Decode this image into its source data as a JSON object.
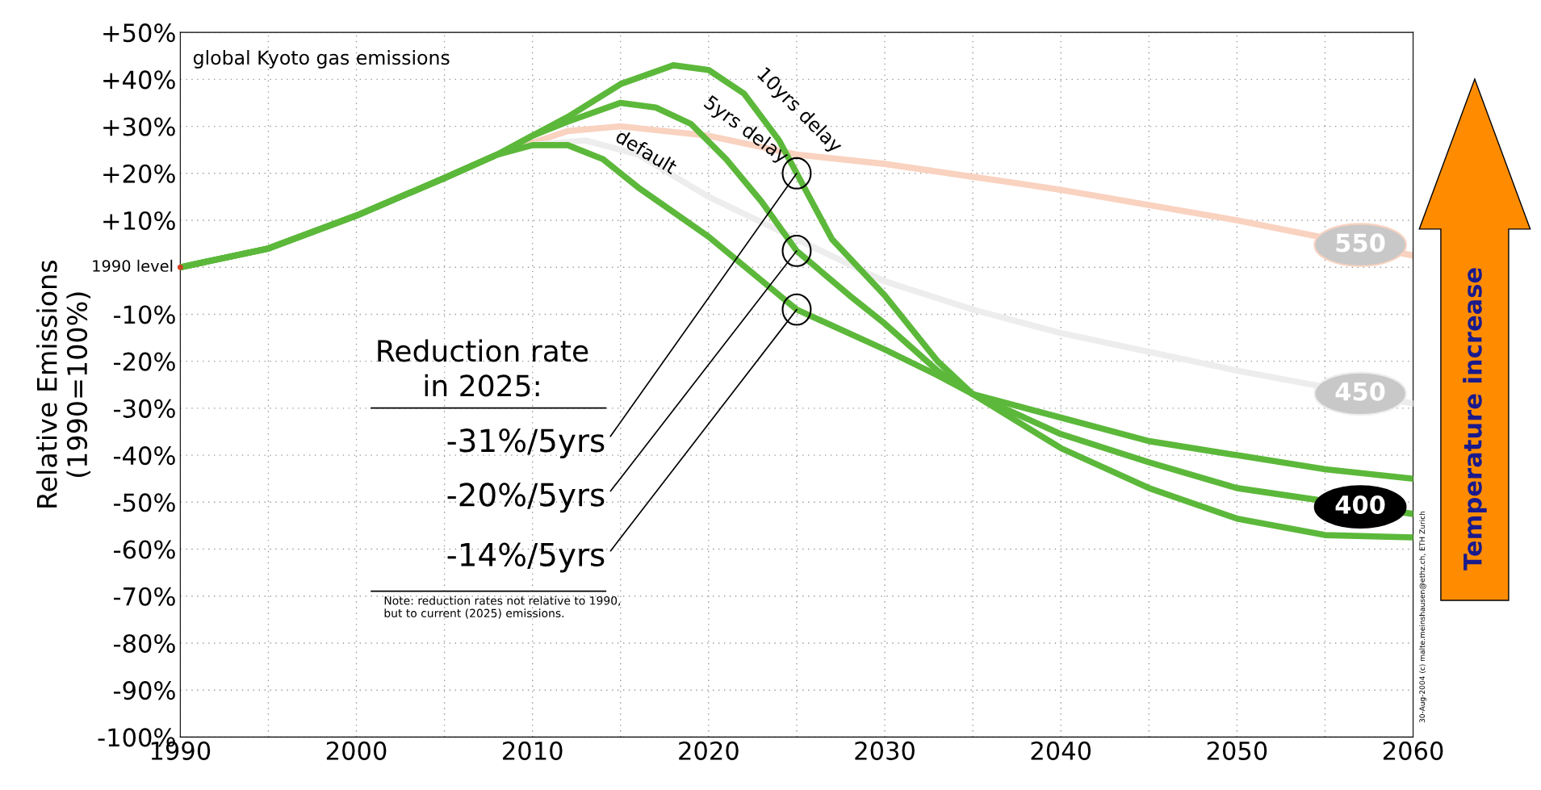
{
  "chart_data": {
    "type": "line",
    "title": "global Kyoto gas emissions",
    "ylabel": "Relative Emissions\n(1990=100%)",
    "series": [
      {
        "name": "550",
        "color": "#f9d2c0",
        "x": [
          2008,
          2012,
          2015,
          2020,
          2025,
          2030,
          2040,
          2050,
          2060
        ],
        "values": [
          24,
          29,
          30,
          28,
          24,
          22,
          16.5,
          10,
          2.5
        ]
      },
      {
        "name": "450",
        "color": "#ededed",
        "x": [
          2008,
          2010,
          2013,
          2016,
          2020,
          2025,
          2030,
          2035,
          2040,
          2045,
          2050,
          2060
        ],
        "values": [
          24,
          26,
          27,
          24,
          15,
          6,
          -3,
          -9,
          -14,
          -18,
          -22,
          -29
        ]
      },
      {
        "name": "10yrs delay",
        "color": "#5cb83a",
        "x": [
          1990,
          1995,
          2000,
          2005,
          2008,
          2010,
          2012,
          2015,
          2018,
          2020,
          2022,
          2024,
          2025,
          2027,
          2030,
          2033,
          2035,
          2040,
          2045,
          2050,
          2055,
          2060
        ],
        "values": [
          0,
          4,
          11,
          19,
          24,
          28,
          32,
          39,
          43,
          42,
          37,
          27,
          20,
          6,
          -6,
          -20,
          -27,
          -38.5,
          -47,
          -53.5,
          -57,
          -57.5
        ]
      },
      {
        "name": "5yrs delay",
        "color": "#5cb83a",
        "x": [
          1990,
          1995,
          2000,
          2005,
          2008,
          2010,
          2012,
          2015,
          2017,
          2019,
          2021,
          2023,
          2025,
          2028,
          2030,
          2033,
          2035,
          2040,
          2045,
          2050,
          2060
        ],
        "values": [
          0,
          4,
          11,
          19,
          24,
          28,
          31,
          35,
          34,
          30.5,
          23,
          14,
          3.5,
          -6,
          -12,
          -22,
          -27,
          -35.5,
          -41.5,
          -47,
          -52.5
        ]
      },
      {
        "name": "default",
        "color": "#5cb83a",
        "x": [
          1990,
          1995,
          2000,
          2005,
          2008,
          2010,
          2012,
          2014,
          2016,
          2020,
          2025,
          2030,
          2033,
          2035,
          2040,
          2045,
          2050,
          2055,
          2060
        ],
        "values": [
          0,
          4,
          11,
          19,
          24,
          26,
          26,
          23,
          17,
          6.5,
          -9,
          -17.5,
          -23,
          -27,
          -32,
          -37,
          -40,
          -43,
          -45
        ]
      }
    ],
    "xlim": [
      1990,
      2060
    ],
    "xticks": [
      1990,
      {
        "value": 1995,
        "label": null
      },
      2000,
      {
        "value": 2005,
        "label": null
      },
      2010,
      {
        "value": 2015,
        "label": null
      },
      2020,
      {
        "value": 2025,
        "label": null
      },
      2030,
      {
        "value": 2035,
        "label": null
      },
      2040,
      {
        "value": 2045,
        "label": null
      },
      2050,
      {
        "value": 2055,
        "label": null
      },
      2060
    ],
    "ylim": [
      -100,
      50
    ],
    "yticks": [
      {
        "value": 50,
        "label": "+50%"
      },
      {
        "value": 40,
        "label": "+40%"
      },
      {
        "value": 30,
        "label": "+30%"
      },
      {
        "value": 20,
        "label": "+20%"
      },
      {
        "value": 10,
        "label": "+10%"
      },
      {
        "value": 0,
        "label": null
      },
      {
        "value": -10,
        "label": "-10%"
      },
      {
        "value": -20,
        "label": "-20%"
      },
      {
        "value": -30,
        "label": "-30%"
      },
      {
        "value": -40,
        "label": "-40%"
      },
      {
        "value": -50,
        "label": "-50%"
      },
      {
        "value": -60,
        "label": "-60%"
      },
      {
        "value": -70,
        "label": "-70%"
      },
      {
        "value": -80,
        "label": "-80%"
      },
      {
        "value": -90,
        "label": "-90%"
      },
      {
        "value": -100,
        "label": "-100%"
      }
    ],
    "grid": true,
    "line_style": "solid",
    "annotations": [
      "Reduction rate\nin 2025:",
      {
        "text": "1990 level",
        "x": 1990,
        "y": 0
      },
      {
        "text": "-31%/5yrs",
        "x": 2025,
        "y": 20
      },
      {
        "text": "-20%/5yrs",
        "x": 2025,
        "y": 3.5
      },
      {
        "text": "-14%/5yrs",
        "x": 2025,
        "y": -9
      },
      "Note: reduction rates not relative to 1990,\nbut to current (2025) emissions.",
      {
        "text": "400",
        "x": 2057,
        "y": -51
      },
      "Temperature increase",
      "30-Aug-2004 (c) malte.meinshausen@ethz.ch, ETH Zurich"
    ]
  }
}
